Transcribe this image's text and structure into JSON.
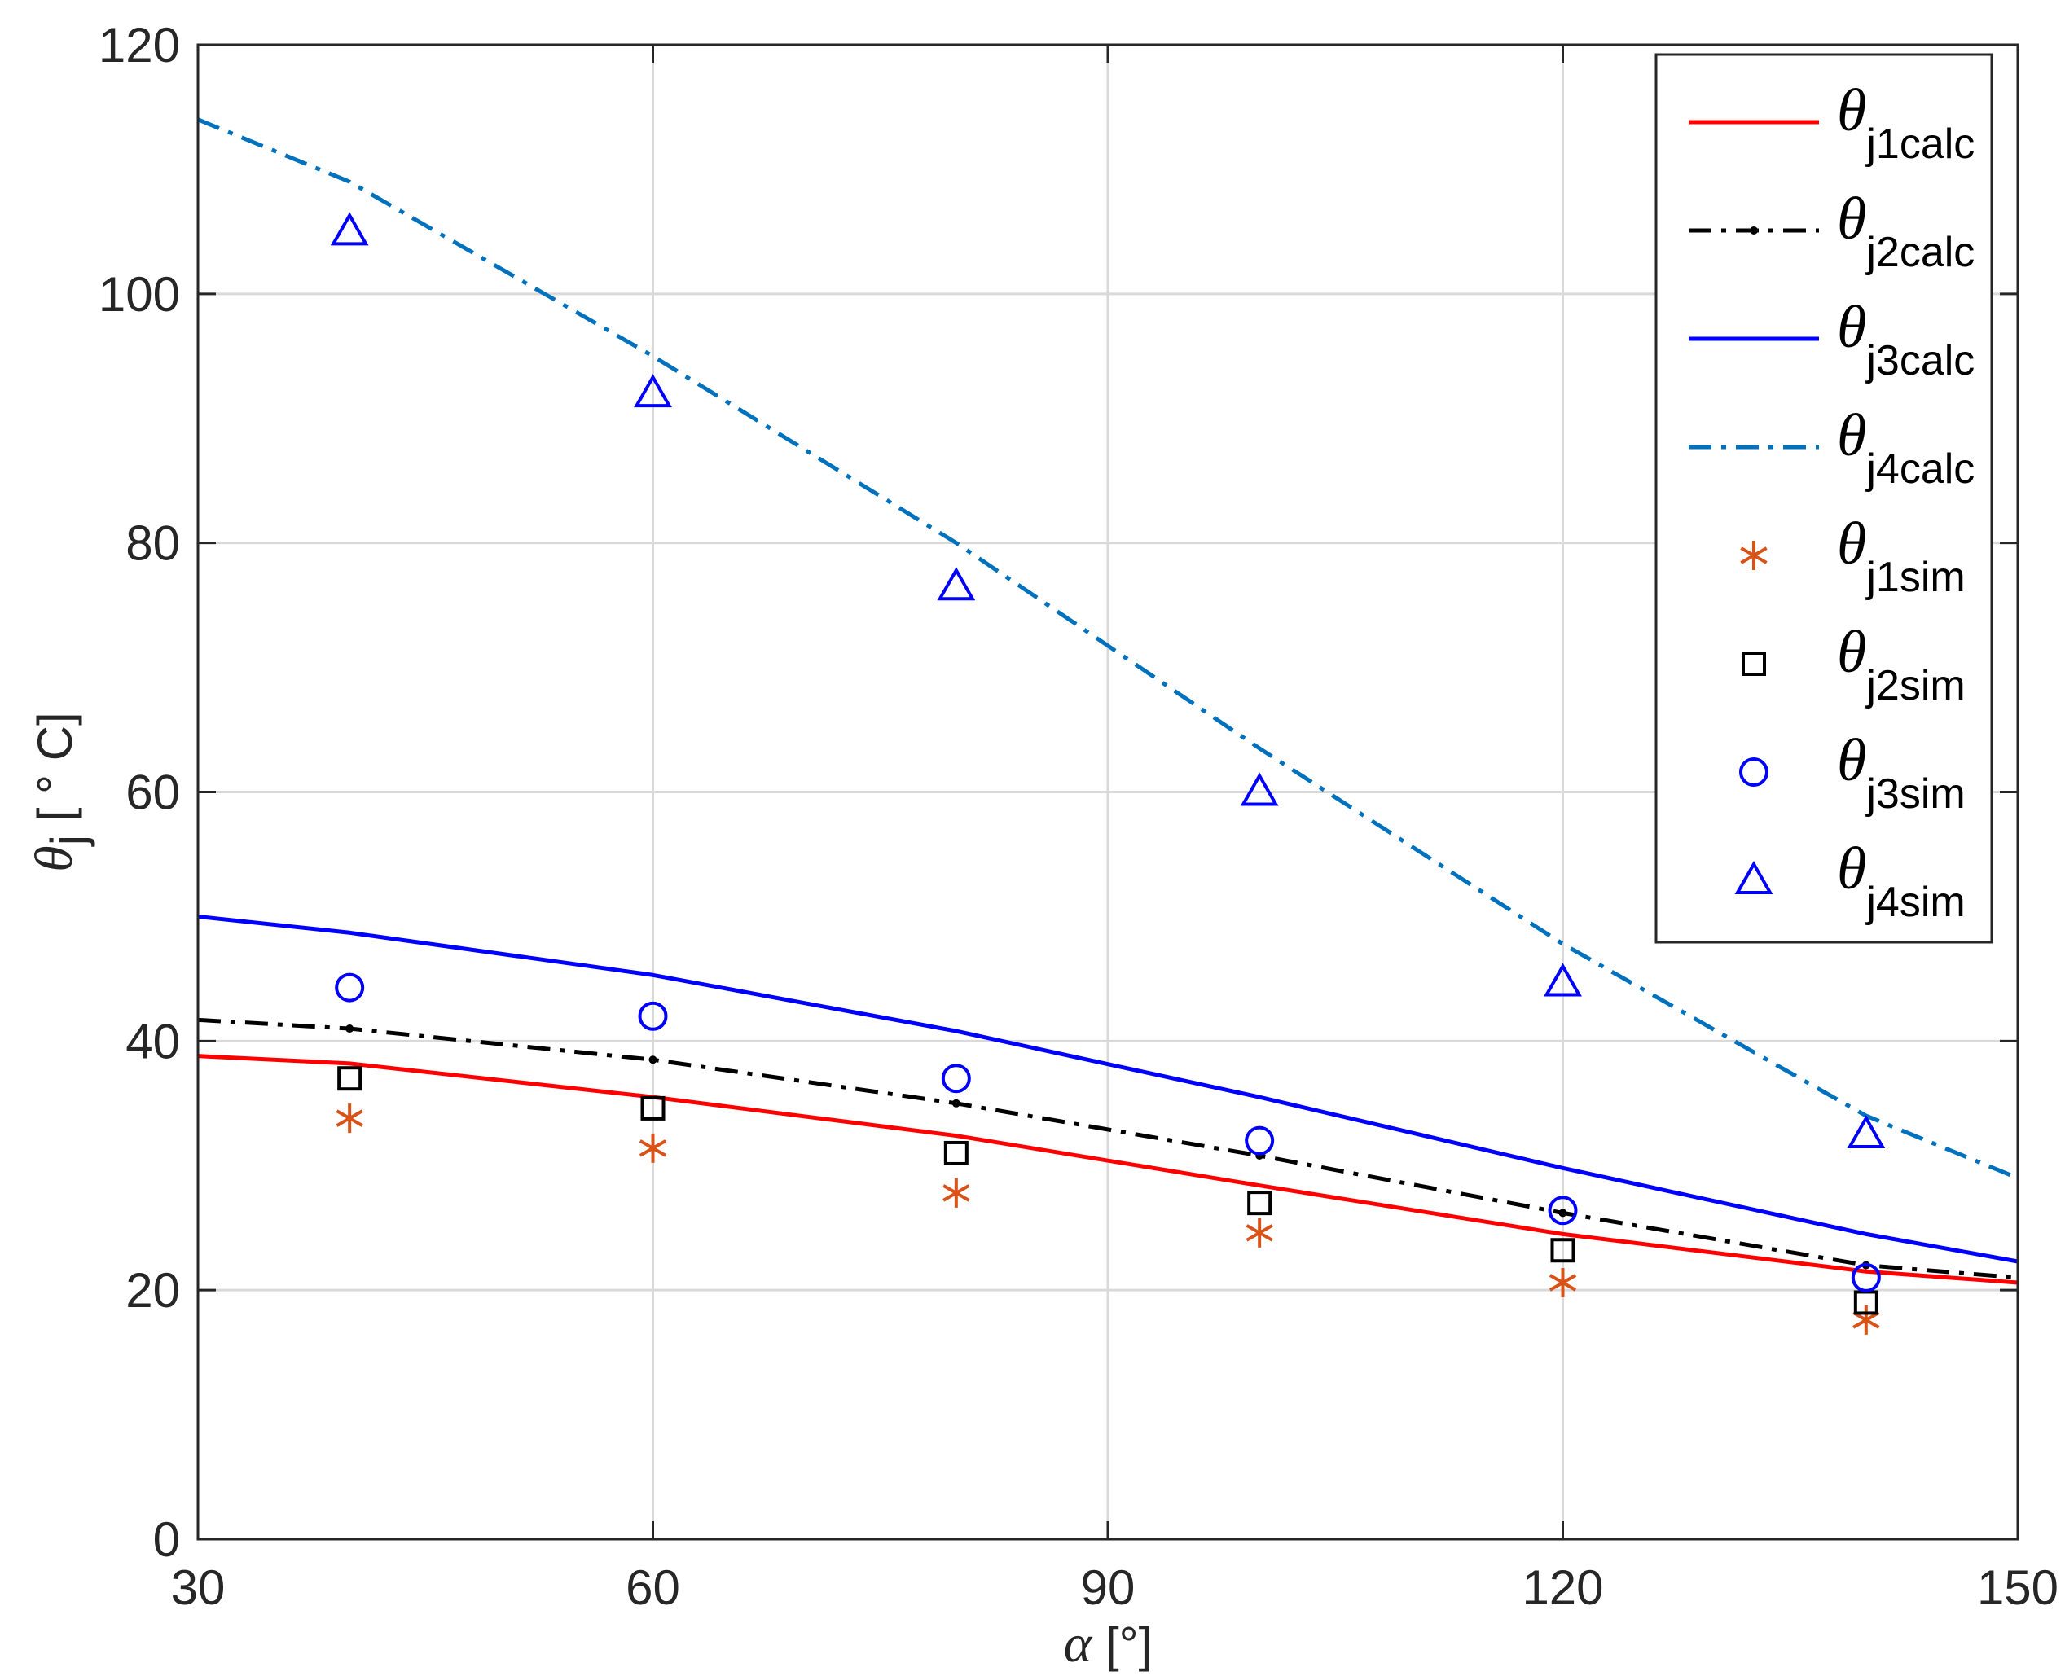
{
  "chart_data": {
    "type": "line",
    "title": "",
    "xlabel": {
      "symbol": "α",
      "unit": " [°]"
    },
    "ylabel": {
      "symbol": "θ",
      "sub": "j",
      "unit": " [ ° C]"
    },
    "xlim": [
      30,
      150
    ],
    "ylim": [
      0,
      120
    ],
    "xticks": [
      30,
      60,
      90,
      120,
      150
    ],
    "yticks": [
      0,
      20,
      40,
      60,
      80,
      100,
      120
    ],
    "grid": true,
    "legend_position": "top-right",
    "series": [
      {
        "name": "θj1calc",
        "sym": "θ",
        "sub": "j1calc",
        "kind": "line",
        "style": "solid",
        "color": "#ff0000",
        "x": [
          30,
          40,
          60,
          80,
          100,
          120,
          140,
          150
        ],
        "y": [
          38.8,
          38.2,
          35.5,
          32.4,
          28.4,
          24.5,
          21.5,
          20.6
        ]
      },
      {
        "name": "θj2calc",
        "sym": "θ",
        "sub": "j2calc",
        "kind": "line",
        "style": "dashdot-dot",
        "color": "#000000",
        "x": [
          30,
          40,
          60,
          80,
          100,
          120,
          140,
          150
        ],
        "y": [
          41.7,
          41.0,
          38.5,
          35.0,
          30.8,
          26.2,
          22.0,
          21.0
        ]
      },
      {
        "name": "θj3calc",
        "sym": "θ",
        "sub": "j3calc",
        "kind": "line",
        "style": "solid",
        "color": "#0000ff",
        "x": [
          30,
          40,
          60,
          80,
          100,
          120,
          140,
          150
        ],
        "y": [
          50.0,
          48.7,
          45.3,
          40.8,
          35.5,
          29.8,
          24.5,
          22.3
        ]
      },
      {
        "name": "θj4calc",
        "sym": "θ",
        "sub": "j4calc",
        "kind": "line",
        "style": "dashdot",
        "color": "#0072bd",
        "x": [
          30,
          40,
          60,
          80,
          100,
          120,
          140,
          150
        ],
        "y": [
          114.0,
          109.0,
          95.0,
          80.0,
          63.5,
          47.8,
          34.0,
          29.0
        ]
      },
      {
        "name": "θj1sim",
        "sym": "θ",
        "sub": "j1sim",
        "kind": "marker",
        "marker": "asterisk",
        "color": "#d95319",
        "x": [
          40,
          60,
          80,
          100,
          120,
          140
        ],
        "y": [
          33.8,
          31.4,
          27.8,
          24.6,
          20.6,
          17.6
        ]
      },
      {
        "name": "θj2sim",
        "sym": "θ",
        "sub": "j2sim",
        "kind": "marker",
        "marker": "square",
        "color": "#000000",
        "x": [
          40,
          60,
          80,
          100,
          120,
          140
        ],
        "y": [
          37.0,
          34.6,
          31.0,
          27.0,
          23.2,
          19.0
        ]
      },
      {
        "name": "θj3sim",
        "sym": "θ",
        "sub": "j3sim",
        "kind": "marker",
        "marker": "circle",
        "color": "#0000ff",
        "x": [
          40,
          60,
          80,
          100,
          120,
          140
        ],
        "y": [
          44.3,
          42.0,
          37.0,
          32.0,
          26.4,
          21.0
        ]
      },
      {
        "name": "θj4sim",
        "sym": "θ",
        "sub": "j4sim",
        "kind": "marker",
        "marker": "triangle",
        "color": "#0000ff",
        "x": [
          40,
          60,
          80,
          100,
          120,
          140
        ],
        "y": [
          105.0,
          92.0,
          76.5,
          60.0,
          44.7,
          32.5
        ]
      }
    ]
  }
}
